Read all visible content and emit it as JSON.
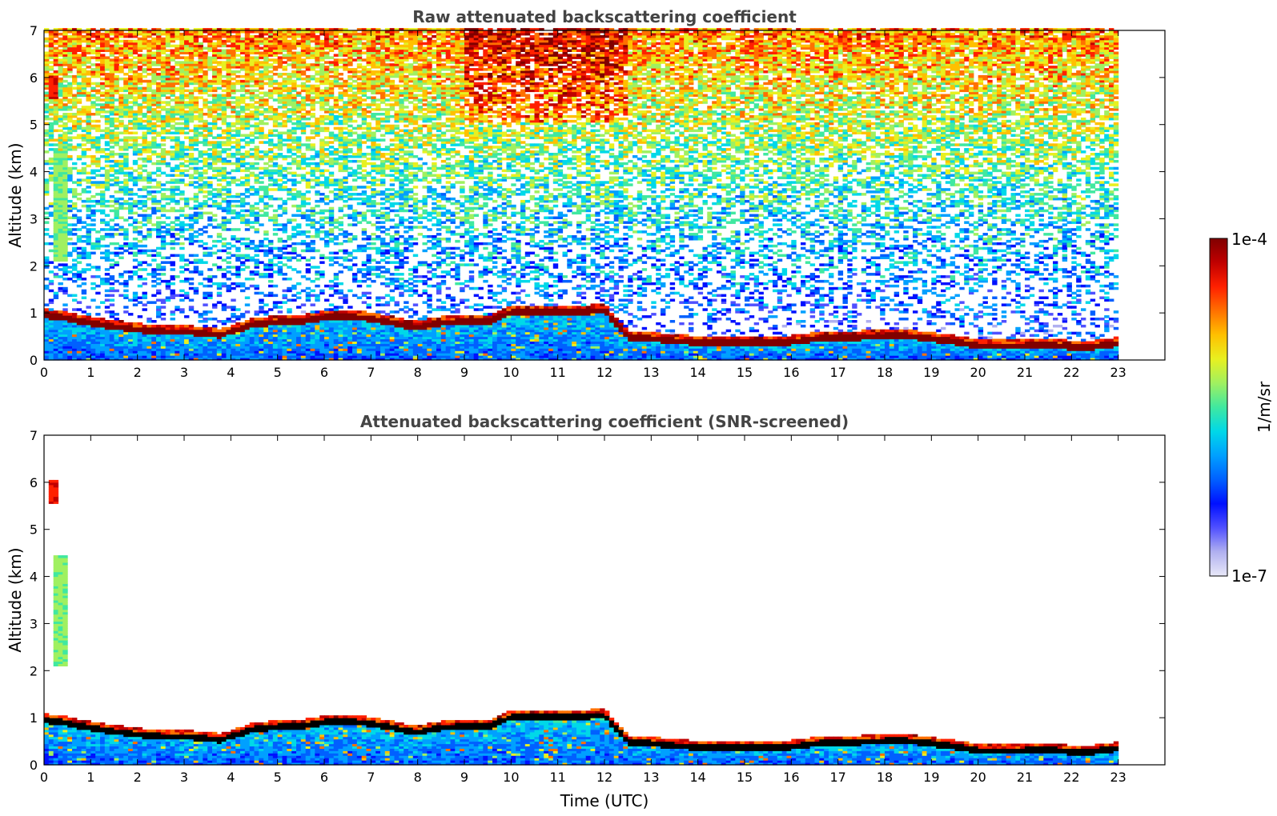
{
  "chart_data": [
    {
      "type": "heatmap",
      "title": "Raw attenuated backscattering coefficient",
      "xlabel": "",
      "ylabel": "Altitude (km)",
      "xlim": [
        0,
        24
      ],
      "ylim": [
        0,
        7
      ],
      "xticks": [
        "0",
        "1",
        "2",
        "3",
        "4",
        "5",
        "6",
        "7",
        "8",
        "9",
        "10",
        "11",
        "12",
        "13",
        "14",
        "15",
        "16",
        "17",
        "18",
        "19",
        "20",
        "21",
        "22",
        "23"
      ],
      "yticks": [
        "0",
        "1",
        "2",
        "3",
        "4",
        "5",
        "6",
        "7"
      ],
      "data_end_hour": 23,
      "cloud_base_km": [
        [
          0,
          0.95
        ],
        [
          0.5,
          0.88
        ],
        [
          1,
          0.78
        ],
        [
          1.5,
          0.7
        ],
        [
          2,
          0.64
        ],
        [
          2.5,
          0.6
        ],
        [
          3,
          0.6
        ],
        [
          3.5,
          0.55
        ],
        [
          3.8,
          0.52
        ],
        [
          4,
          0.6
        ],
        [
          4.5,
          0.75
        ],
        [
          5,
          0.8
        ],
        [
          5.5,
          0.82
        ],
        [
          6,
          0.9
        ],
        [
          6.5,
          0.92
        ],
        [
          7,
          0.87
        ],
        [
          7.5,
          0.78
        ],
        [
          8,
          0.68
        ],
        [
          8.5,
          0.78
        ],
        [
          9,
          0.82
        ],
        [
          9.5,
          0.8
        ],
        [
          10,
          1.0
        ],
        [
          10.5,
          1.02
        ],
        [
          11,
          1.0
        ],
        [
          11.5,
          1.02
        ],
        [
          12,
          1.05
        ],
        [
          12.5,
          0.48
        ],
        [
          13,
          0.45
        ],
        [
          13.5,
          0.4
        ],
        [
          14,
          0.37
        ],
        [
          14.5,
          0.35
        ],
        [
          15,
          0.36
        ],
        [
          15.5,
          0.35
        ],
        [
          16,
          0.38
        ],
        [
          16.5,
          0.44
        ],
        [
          17,
          0.48
        ],
        [
          17.5,
          0.48
        ],
        [
          18,
          0.5
        ],
        [
          18.5,
          0.5
        ],
        [
          19,
          0.45
        ],
        [
          19.5,
          0.38
        ],
        [
          20,
          0.3
        ],
        [
          20.5,
          0.28
        ],
        [
          21,
          0.3
        ],
        [
          21.5,
          0.32
        ],
        [
          22,
          0.27
        ],
        [
          22.5,
          0.28
        ],
        [
          23,
          0.35
        ]
      ],
      "elevated_layers": [
        {
          "x0": 0.2,
          "x1": 0.5,
          "y0": 2.1,
          "y1": 4.4,
          "level": 0.5
        },
        {
          "x0": 0.1,
          "x1": 0.25,
          "y0": 5.5,
          "y1": 6.0,
          "level": 0.8
        }
      ],
      "noise_increases_with_altitude": true
    },
    {
      "type": "heatmap",
      "title": "Attenuated backscattering coefficient (SNR-screened)",
      "xlabel": "Time (UTC)",
      "ylabel": "Altitude (km)",
      "xlim": [
        0,
        24
      ],
      "ylim": [
        0,
        7
      ],
      "xticks": [
        "0",
        "1",
        "2",
        "3",
        "4",
        "5",
        "6",
        "7",
        "8",
        "9",
        "10",
        "11",
        "12",
        "13",
        "14",
        "15",
        "16",
        "17",
        "18",
        "19",
        "20",
        "21",
        "22",
        "23"
      ],
      "yticks": [
        "0",
        "1",
        "2",
        "3",
        "4",
        "5",
        "6",
        "7"
      ],
      "data_end_hour": 23,
      "screened": true
    }
  ],
  "colorbar": {
    "max_label": "1e-4",
    "min_label": "1e-7",
    "unit_label": "1/m/sr",
    "colormap": [
      "#e8e8f8",
      "#b0b0f0",
      "#5050ff",
      "#0010ff",
      "#0060ff",
      "#00a0ff",
      "#00d8e8",
      "#40e8a0",
      "#a0f060",
      "#e8f020",
      "#ffc000",
      "#ff7000",
      "#ff2000",
      "#c00000",
      "#800000"
    ]
  }
}
